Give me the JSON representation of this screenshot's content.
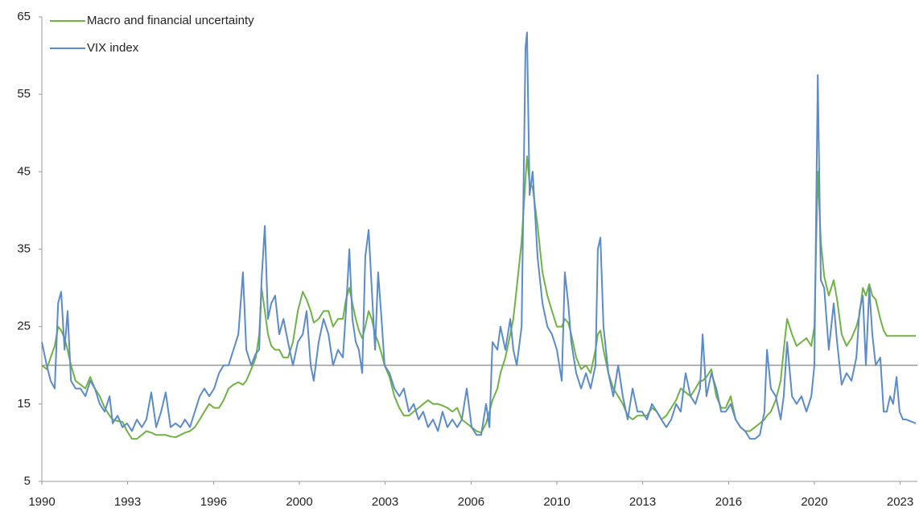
{
  "chart_data": {
    "type": "line",
    "x": [
      1990,
      1990.19,
      1990.34,
      1990.5,
      1990.63,
      1990.75,
      1990.88,
      1991,
      1991.13,
      1991.31,
      1991.5,
      1991.69,
      1991.88,
      1992.06,
      1992.25,
      1992.44,
      1992.63,
      1992.75,
      1992.94,
      1993.13,
      1993.31,
      1993.5,
      1993.69,
      1993.88,
      1994.06,
      1994.25,
      1994.44,
      1994.63,
      1994.81,
      1995,
      1995.19,
      1995.38,
      1995.56,
      1995.75,
      1995.94,
      1996.13,
      1996.31,
      1996.5,
      1996.69,
      1996.88,
      1997.06,
      1997.25,
      1997.44,
      1997.63,
      1997.81,
      1997.94,
      1998.13,
      1998.31,
      1998.44,
      1998.53,
      1998.66,
      1998.78,
      1998.91,
      1999.06,
      1999.22,
      1999.38,
      1999.56,
      1999.75,
      1999.94,
      2000.13,
      2000.28,
      2000.44,
      2000.56,
      2000.75,
      2000.94,
      2001.13,
      2001.31,
      2001.5,
      2001.69,
      2001.81,
      2001.94,
      2002.06,
      2002.19,
      2002.31,
      2002.44,
      2002.56,
      2002.69,
      2002.81,
      2002.94,
      2003.06,
      2003.19,
      2003.31,
      2003.5,
      2003.69,
      2003.88,
      2004.06,
      2004.25,
      2004.44,
      2004.63,
      2004.81,
      2005,
      2005.19,
      2005.38,
      2005.56,
      2005.75,
      2005.94,
      2006.13,
      2006.31,
      2006.5,
      2006.69,
      2006.88,
      2007.06,
      2007.25,
      2007.38,
      2007.5,
      2007.69,
      2007.81,
      2008,
      2008.19,
      2008.31,
      2008.44,
      2008.63,
      2008.78,
      2008.84,
      2008.94,
      2009.06,
      2009.25,
      2009.44,
      2009.63,
      2009.81,
      2010,
      2010.19,
      2010.31,
      2010.44,
      2010.56,
      2010.75,
      2010.94,
      2011.13,
      2011.31,
      2011.5,
      2011.59,
      2011.69,
      2011.81,
      2012,
      2012.19,
      2012.38,
      2012.56,
      2012.75,
      2012.94,
      2013.13,
      2013.31,
      2013.5,
      2013.69,
      2013.88,
      2014.06,
      2014.25,
      2014.44,
      2014.63,
      2014.81,
      2015,
      2015.19,
      2015.38,
      2015.56,
      2015.66,
      2015.81,
      2016,
      2016.19,
      2016.38,
      2016.56,
      2016.75,
      2016.94,
      2017.13,
      2017.31,
      2017.5,
      2017.69,
      2017.88,
      2018.06,
      2018.16,
      2018.31,
      2018.5,
      2018.69,
      2018.81,
      2018.94,
      2019.13,
      2019.31,
      2019.5,
      2019.69,
      2019.88,
      2020,
      2020.13,
      2020.25,
      2020.38,
      2020.56,
      2020.75,
      2020.88,
      2021.06,
      2021.25,
      2021.44,
      2021.63,
      2021.75,
      2021.88,
      2022,
      2022.13,
      2022.25,
      2022.38,
      2022.56,
      2022.69,
      2022.81,
      2022.94,
      2023.06,
      2023.19,
      2023.31,
      2023.44,
      2023.56,
      2023.94
    ],
    "series": [
      {
        "name": "Macro and financial uncertainty",
        "color": "#70b244",
        "values": [
          20,
          19.5,
          21,
          22.5,
          25,
          24.5,
          23.5,
          22,
          20,
          18,
          17.5,
          17,
          18.5,
          17,
          16,
          14.5,
          13.5,
          13,
          12.8,
          12.7,
          11.5,
          10.5,
          10.5,
          11,
          11.5,
          11.3,
          11,
          11,
          11,
          10.8,
          10.7,
          11,
          11.3,
          11.5,
          12,
          13,
          14,
          15,
          14.5,
          14.5,
          15.5,
          17,
          17.5,
          17.8,
          17.5,
          18,
          19.5,
          21,
          24,
          30,
          27,
          24,
          22.5,
          22,
          22,
          21,
          21,
          23,
          27,
          29.5,
          28.5,
          27,
          25.5,
          26,
          27,
          27,
          25,
          26,
          26,
          28.5,
          30,
          28,
          26,
          24.5,
          23.5,
          25,
          27,
          26,
          24,
          23,
          21.5,
          20,
          18.5,
          16,
          14.5,
          13.5,
          13.5,
          14,
          14.5,
          15,
          15.5,
          15,
          15,
          14.8,
          14.5,
          14,
          14.5,
          13,
          12.5,
          12,
          11.5,
          11.3,
          12.5,
          14,
          15.5,
          17,
          19,
          21,
          24,
          26,
          30,
          36,
          44,
          47,
          43.5,
          43,
          38,
          32,
          29,
          27,
          25,
          25,
          26,
          25.5,
          24,
          21,
          19.5,
          20,
          19,
          22,
          24,
          24.5,
          22,
          19,
          17,
          16,
          15,
          13.5,
          13,
          13.5,
          13.5,
          13.5,
          14.5,
          14,
          13,
          13.5,
          14.5,
          15.5,
          17,
          16.5,
          16,
          17,
          18,
          18,
          18.5,
          19.5,
          16,
          14.5,
          14.5,
          16,
          13,
          12,
          11.5,
          11.5,
          12,
          12.5,
          13,
          13.5,
          14,
          15.5,
          18,
          22,
          26,
          24,
          22.5,
          23,
          23.5,
          22.5,
          25,
          45,
          36,
          31.5,
          29,
          31,
          28.5,
          24,
          22.5,
          23.5,
          25,
          26.5,
          30,
          29,
          30.5,
          29,
          28.5,
          26,
          24.5,
          23.8,
          23.8,
          23.8,
          23.8,
          23.8,
          23.8,
          23.8,
          23.8
        ]
      },
      {
        "name": "VIX index",
        "color": "#5b8bc9",
        "values": [
          23,
          20,
          18,
          17,
          28,
          29.5,
          22,
          27,
          18,
          17,
          17,
          16,
          18,
          17,
          15,
          14,
          16,
          12.5,
          13.5,
          12,
          12.5,
          11.5,
          13,
          12,
          13,
          16.5,
          12,
          14,
          16.5,
          12,
          12.5,
          12,
          13,
          12,
          14,
          16,
          17,
          16,
          17,
          19,
          20,
          20,
          22,
          24,
          32,
          22,
          20,
          21.5,
          22,
          31,
          38,
          26,
          28,
          29,
          24,
          26,
          23,
          20,
          23,
          24,
          27,
          20,
          18,
          23,
          26,
          24,
          20,
          22,
          21,
          27,
          35,
          26,
          23,
          22,
          19,
          34,
          37.5,
          30,
          22,
          32,
          26,
          20,
          19,
          17,
          16,
          17,
          14,
          15,
          13,
          14,
          12,
          13,
          11.5,
          14,
          12,
          13,
          12,
          13,
          17,
          12,
          11,
          11,
          15,
          12,
          23,
          22,
          25,
          22,
          26,
          22,
          20,
          25,
          61,
          63,
          42,
          45,
          34,
          28,
          25,
          24,
          22,
          18,
          32,
          28,
          23,
          19,
          17,
          19,
          17,
          20,
          35,
          36.5,
          25,
          19,
          16,
          20,
          16,
          13,
          17,
          14,
          14,
          13,
          15,
          14,
          13,
          12,
          13,
          15,
          14,
          19,
          16,
          15,
          17,
          24,
          16,
          19,
          17,
          14,
          14,
          15,
          13,
          12,
          11.5,
          10.5,
          10.5,
          11,
          14,
          22,
          17,
          16,
          13,
          16,
          23,
          16,
          15,
          16,
          14,
          16,
          20,
          57.5,
          31,
          30,
          22,
          28,
          23,
          17.5,
          19,
          18,
          21,
          27,
          29,
          20,
          30,
          24,
          20,
          21,
          14,
          14,
          16,
          15,
          18.5,
          14,
          13,
          13,
          12.5
        ]
      }
    ],
    "xlim": [
      1990,
      2024
    ],
    "xticks": [
      1990,
      {
        "value": 1993.33,
        "label": "1993"
      },
      {
        "value": 1996.67,
        "label": "1996"
      },
      2000,
      {
        "value": 2003.33,
        "label": "2003"
      },
      {
        "value": 2006.67,
        "label": "2006"
      },
      2010,
      {
        "value": 2013.33,
        "label": "2013"
      },
      {
        "value": 2016.67,
        "label": "2016"
      },
      2020,
      {
        "value": 2023.33,
        "label": "2023"
      }
    ],
    "ylim": [
      5,
      65
    ],
    "yticks": [
      5,
      15,
      25,
      35,
      45,
      55,
      65
    ],
    "reference_line": 20,
    "grid": false,
    "legend": "top-left"
  }
}
